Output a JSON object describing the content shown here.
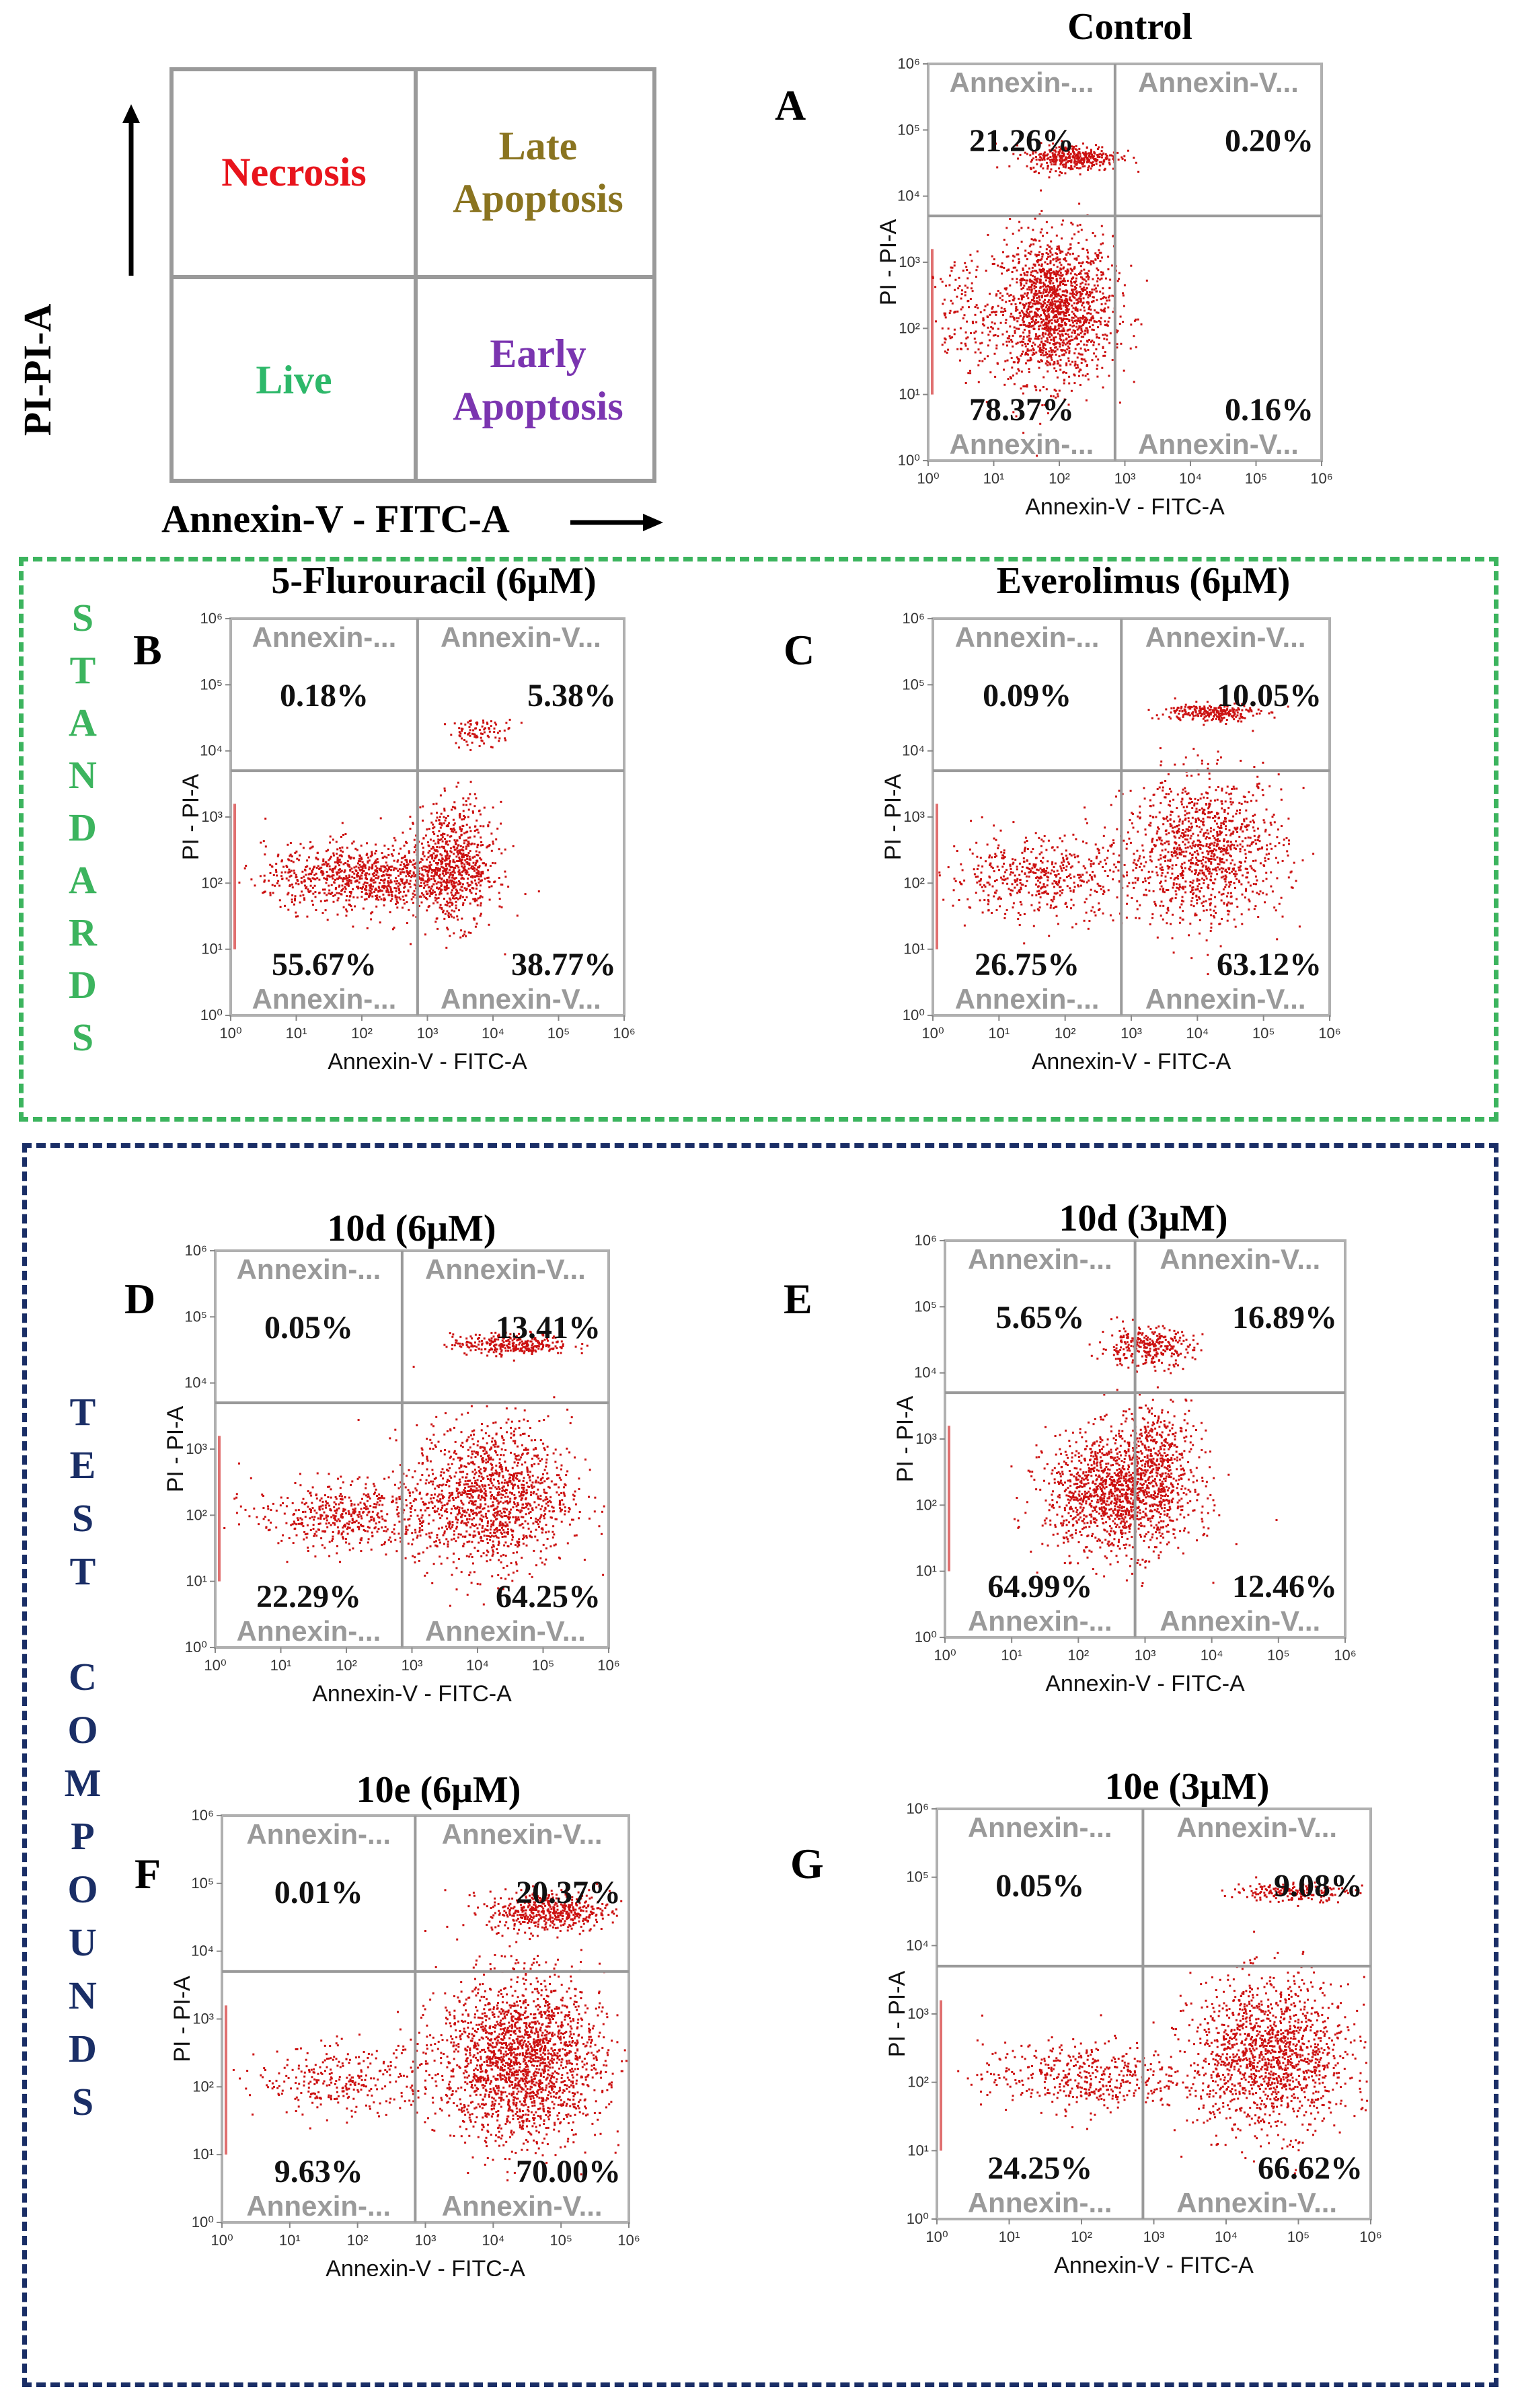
{
  "legend": {
    "cells": {
      "top_left": "Necrosis",
      "top_right": "Late Apoptosis",
      "bottom_left": "Live",
      "bottom_right": "Early Apoptosis"
    },
    "y_label": "PI-PI-A",
    "x_label": "Annexin-V - FITC-A",
    "colors": {
      "necrosis": "#e8141c",
      "late": "#8a7420",
      "live": "#2eb86a",
      "early": "#7b35b0"
    }
  },
  "groups": {
    "standards": {
      "text": "STANDARDS",
      "color": "#3cb45e"
    },
    "test": {
      "text": "TEST COMPOUNDS",
      "color": "#1a2e66"
    }
  },
  "quadrant_label_text": {
    "left": "Annexin-...",
    "right": "Annexin-V..."
  },
  "chart_data": [
    {
      "id": "A",
      "type": "scatter",
      "title": "Control",
      "xlabel": "Annexin-V - FITC-A",
      "ylabel": "PI - PI-A",
      "x_ticks": [
        "10⁰",
        "10¹",
        "10²",
        "10³",
        "10⁴",
        "10⁵",
        "10⁶"
      ],
      "y_ticks": [
        "10⁰",
        "10¹",
        "10²",
        "10³",
        "10⁴",
        "10⁵",
        "10⁶"
      ],
      "quadrants": {
        "UL": "21.26%",
        "UR": "0.20%",
        "LL": "78.37%",
        "LR": "0.16%"
      }
    },
    {
      "id": "B",
      "type": "scatter",
      "title": "5-Flurouracil (6μM)",
      "xlabel": "Annexin-V - FITC-A",
      "ylabel": "PI - PI-A",
      "x_ticks": [
        "10⁰",
        "10¹",
        "10²",
        "10³",
        "10⁴",
        "10⁵",
        "10⁶"
      ],
      "y_ticks": [
        "10⁰",
        "10¹",
        "10²",
        "10³",
        "10⁴",
        "10⁵",
        "10⁶"
      ],
      "quadrants": {
        "UL": "0.18%",
        "UR": "5.38%",
        "LL": "55.67%",
        "LR": "38.77%"
      }
    },
    {
      "id": "C",
      "type": "scatter",
      "title": "Everolimus (6μM)",
      "xlabel": "Annexin-V - FITC-A",
      "ylabel": "PI - PI-A",
      "x_ticks": [
        "10⁰",
        "10¹",
        "10²",
        "10³",
        "10⁴",
        "10⁵",
        "10⁶"
      ],
      "y_ticks": [
        "10⁰",
        "10¹",
        "10²",
        "10³",
        "10⁴",
        "10⁵",
        "10⁶"
      ],
      "quadrants": {
        "UL": "0.09%",
        "UR": "10.05%",
        "LL": "26.75%",
        "LR": "63.12%"
      }
    },
    {
      "id": "D",
      "type": "scatter",
      "title": "10d (6μM)",
      "xlabel": "Annexin-V - FITC-A",
      "ylabel": "PI - PI-A",
      "x_ticks": [
        "10⁰",
        "10¹",
        "10²",
        "10³",
        "10⁴",
        "10⁵",
        "10⁶"
      ],
      "y_ticks": [
        "10⁰",
        "10¹",
        "10²",
        "10³",
        "10⁴",
        "10⁵",
        "10⁶"
      ],
      "quadrants": {
        "UL": "0.05%",
        "UR": "13.41%",
        "LL": "22.29%",
        "LR": "64.25%"
      }
    },
    {
      "id": "E",
      "type": "scatter",
      "title": "10d (3μM)",
      "xlabel": "Annexin-V - FITC-A",
      "ylabel": "PI - PI-A",
      "x_ticks": [
        "10⁰",
        "10¹",
        "10²",
        "10³",
        "10⁴",
        "10⁵",
        "10⁶"
      ],
      "y_ticks": [
        "10⁰",
        "10¹",
        "10²",
        "10³",
        "10⁴",
        "10⁵",
        "10⁶"
      ],
      "quadrants": {
        "UL": "5.65%",
        "UR": "16.89%",
        "LL": "64.99%",
        "LR": "12.46%"
      }
    },
    {
      "id": "F",
      "type": "scatter",
      "title": "10e (6μM)",
      "xlabel": "Annexin-V - FITC-A",
      "ylabel": "PI - PI-A",
      "x_ticks": [
        "10⁰",
        "10¹",
        "10²",
        "10³",
        "10⁴",
        "10⁵",
        "10⁶"
      ],
      "y_ticks": [
        "10⁰",
        "10¹",
        "10²",
        "10³",
        "10⁴",
        "10⁵",
        "10⁶"
      ],
      "quadrants": {
        "UL": "0.01%",
        "UR": "20.37%",
        "LL": "9.63%",
        "LR": "70.00%"
      }
    },
    {
      "id": "G",
      "type": "scatter",
      "title": "10e (3μM)",
      "xlabel": "Annexin-V - FITC-A",
      "ylabel": "PI - PI-A",
      "x_ticks": [
        "10⁰",
        "10¹",
        "10²",
        "10³",
        "10⁴",
        "10⁵",
        "10⁶"
      ],
      "y_ticks": [
        "10⁰",
        "10¹",
        "10²",
        "10³",
        "10⁴",
        "10⁵",
        "10⁶"
      ],
      "quadrants": {
        "UL": "0.05%",
        "UR": "9.08%",
        "LL": "24.25%",
        "LR": "66.62%"
      }
    }
  ]
}
